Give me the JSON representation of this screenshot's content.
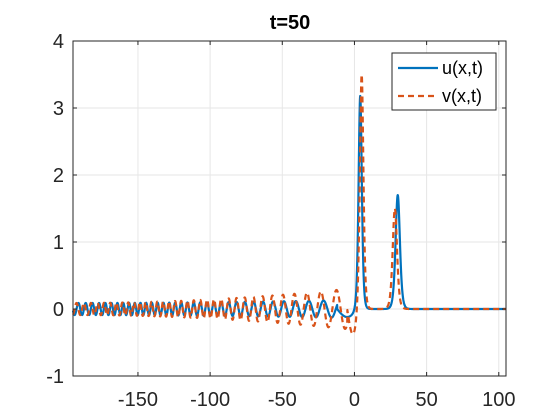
{
  "chart_data": {
    "type": "line",
    "title": "t=50",
    "xlabel": "",
    "ylabel": "",
    "xlim": [
      -195,
      105
    ],
    "ylim": [
      -1,
      4
    ],
    "xticks": [
      -150,
      -100,
      -50,
      0,
      50,
      100
    ],
    "yticks": [
      -1,
      0,
      1,
      2,
      3,
      4
    ],
    "x_tick_labels": [
      "-150",
      "-100",
      "-50",
      "0",
      "50",
      "100"
    ],
    "y_tick_labels": [
      "-1",
      "0",
      "1",
      "2",
      "3",
      "4"
    ],
    "grid": true,
    "legend_position": "top-right",
    "series": [
      {
        "name": "u(x,t)",
        "color": "#0072BD",
        "style": "solid",
        "components": {
          "oscillation": {
            "x_start": -195,
            "x_end": -12,
            "period_left": 5.5,
            "period_right": 13,
            "amp_left": 0.09,
            "amp_right": 0.13,
            "phase": 0
          },
          "baseline": 0,
          "peaks": [
            {
              "x": 4,
              "y": 3.18,
              "width": 1.5
            },
            {
              "x": 30,
              "y": 1.7,
              "width": 2.0
            }
          ],
          "dip": {
            "x_start": -12,
            "x_end": 2,
            "y": -0.12
          }
        }
      },
      {
        "name": "v(x,t)",
        "color": "#D95319",
        "style": "dashed",
        "components": {
          "oscillation": {
            "x_start": -195,
            "x_end": -5,
            "period_left": 5.5,
            "period_right": 13,
            "amp_left": 0.09,
            "amp_right": 0.3,
            "phase": 1.6
          },
          "baseline": 0,
          "peaks": [
            {
              "x": 5,
              "y": 3.5,
              "width": 1.6
            },
            {
              "x": 28,
              "y": 1.5,
              "width": 2.0
            }
          ],
          "dip": {
            "x_start": -5,
            "x_end": 3,
            "y": -0.38
          }
        }
      }
    ]
  },
  "colors": {
    "axis": "#262626",
    "grid": "#e6e6e6",
    "background": "#ffffff"
  }
}
